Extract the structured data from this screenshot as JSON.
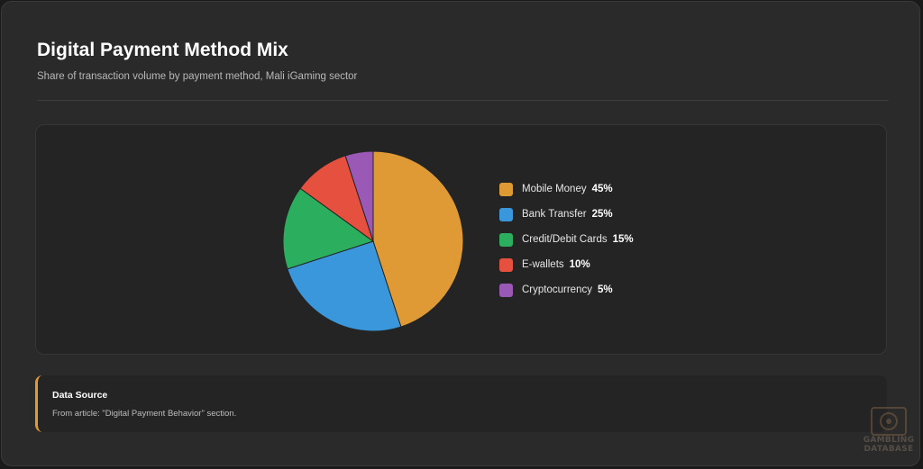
{
  "header": {
    "title": "Digital Payment Method Mix",
    "subtitle": "Share of transaction volume by payment method, Mali iGaming sector"
  },
  "chart_data": {
    "type": "pie",
    "categories": [
      "Mobile Money",
      "Bank Transfer",
      "Credit/Debit Cards",
      "E-wallets",
      "Cryptocurrency"
    ],
    "values": [
      45,
      25,
      15,
      10,
      5
    ],
    "value_labels": [
      "45%",
      "25%",
      "15%",
      "10%",
      "5%"
    ],
    "colors": [
      "#E09A35",
      "#3B97DC",
      "#2BAF5E",
      "#E6503F",
      "#9B59B6"
    ],
    "legend_position": "right"
  },
  "source": {
    "heading": "Data Source",
    "text": "From article: \"Digital Payment Behavior\" section."
  },
  "watermark": {
    "line1": "GAMBLING",
    "line2": "DATABASE"
  }
}
